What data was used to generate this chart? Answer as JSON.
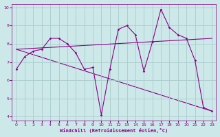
{
  "xlabel": "Windchill (Refroidissement éolien,°C)",
  "background_color": "#cce8e8",
  "grid_color": "#aacccc",
  "line_color": "#880088",
  "xlim": [
    -0.5,
    23.5
  ],
  "ylim": [
    3.8,
    10.2
  ],
  "xticks": [
    0,
    1,
    2,
    3,
    4,
    5,
    6,
    7,
    8,
    9,
    10,
    11,
    12,
    13,
    14,
    15,
    16,
    17,
    18,
    19,
    20,
    21,
    22,
    23
  ],
  "yticks": [
    4,
    5,
    6,
    7,
    8,
    9,
    10
  ],
  "series_main": {
    "x": [
      0,
      1,
      2,
      3,
      4,
      5,
      6,
      7,
      8,
      9,
      10,
      11,
      12,
      13,
      14,
      15,
      16,
      17,
      18,
      19,
      20,
      21,
      22,
      23
    ],
    "y": [
      6.6,
      7.3,
      7.6,
      7.7,
      8.3,
      8.3,
      8.0,
      7.5,
      6.6,
      6.7,
      4.1,
      6.6,
      8.8,
      9.0,
      8.5,
      6.5,
      8.1,
      9.9,
      8.9,
      8.5,
      8.3,
      7.1,
      4.5,
      4.3
    ]
  },
  "series_line1": {
    "x": [
      0,
      23
    ],
    "y": [
      7.7,
      8.3
    ]
  },
  "series_line2": {
    "x": [
      0,
      23
    ],
    "y": [
      7.7,
      4.3
    ]
  }
}
